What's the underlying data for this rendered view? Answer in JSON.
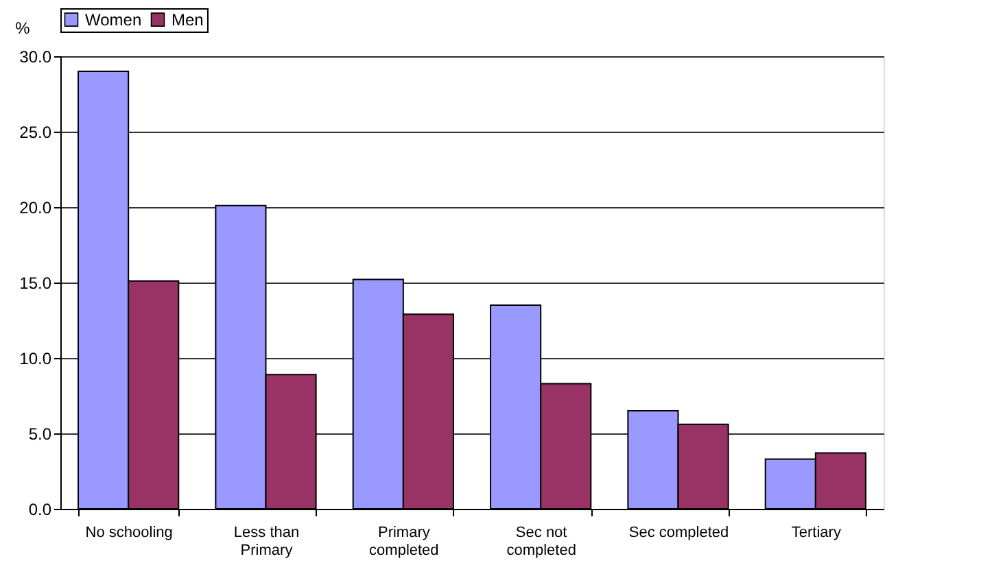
{
  "chart_data": {
    "type": "bar",
    "ylabel": "%",
    "categories": [
      "No schooling",
      "Less than Primary",
      "Primary completed",
      "Sec not completed",
      "Sec completed",
      "Tertiary"
    ],
    "series": [
      {
        "name": "Women",
        "color": "#9999ff",
        "values": [
          29.0,
          20.1,
          15.2,
          13.5,
          6.5,
          3.3
        ]
      },
      {
        "name": "Men",
        "color": "#993366",
        "values": [
          15.1,
          8.9,
          12.9,
          8.3,
          5.6,
          3.7
        ]
      }
    ],
    "ylim": [
      0,
      30
    ],
    "yticks": [
      {
        "value": 0,
        "label": "0.0"
      },
      {
        "value": 5,
        "label": "5.0"
      },
      {
        "value": 10,
        "label": "10.0"
      },
      {
        "value": 15,
        "label": "15.0"
      },
      {
        "value": 20,
        "label": "20.0"
      },
      {
        "value": 25,
        "label": "25.0"
      },
      {
        "value": 30,
        "label": "30.0"
      }
    ],
    "grid": "y",
    "legend": "top"
  }
}
